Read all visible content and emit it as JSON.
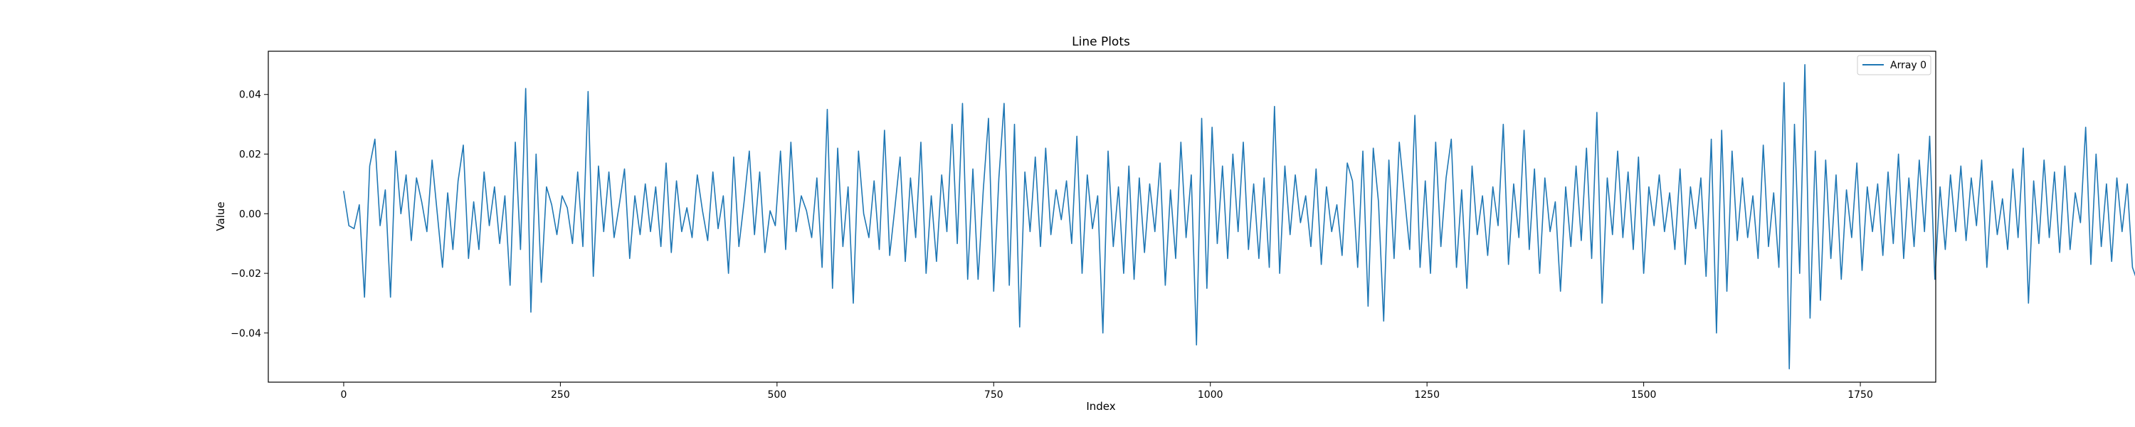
{
  "chart_data": {
    "type": "line",
    "title": "Line Plots",
    "xlabel": "Index",
    "ylabel": "Value",
    "xlim": [
      -87,
      1837
    ],
    "ylim": [
      -0.0565,
      0.0545
    ],
    "x_ticks": [
      0,
      250,
      500,
      750,
      1000,
      1250,
      1500,
      1750
    ],
    "x_tick_labels": [
      "0",
      "250",
      "500",
      "750",
      "1000",
      "1250",
      "1500",
      "1750"
    ],
    "y_ticks": [
      -0.04,
      -0.02,
      0.0,
      0.02,
      0.04
    ],
    "y_tick_labels": [
      "−0.04",
      "−0.02",
      "0.00",
      "0.02",
      "0.04"
    ],
    "grid": false,
    "legend_position": "top-right",
    "colors": {
      "series": "#1f77b4",
      "axes": "#000000",
      "background": "#ffffff"
    },
    "series": [
      {
        "name": "Array 0",
        "x_start": 0,
        "x_step": 6,
        "values": [
          0.0075,
          -0.004,
          -0.005,
          0.003,
          -0.028,
          0.016,
          0.025,
          -0.004,
          0.008,
          -0.028,
          0.021,
          0.0,
          0.013,
          -0.009,
          0.012,
          0.004,
          -0.006,
          0.018,
          0.0,
          -0.018,
          0.007,
          -0.012,
          0.011,
          0.023,
          -0.015,
          0.004,
          -0.012,
          0.014,
          -0.004,
          0.009,
          -0.01,
          0.006,
          -0.024,
          0.024,
          -0.012,
          0.042,
          -0.033,
          0.02,
          -0.023,
          0.009,
          0.003,
          -0.007,
          0.006,
          0.002,
          -0.01,
          0.014,
          -0.011,
          0.041,
          -0.021,
          0.016,
          -0.006,
          0.014,
          -0.008,
          0.003,
          0.015,
          -0.015,
          0.006,
          -0.007,
          0.01,
          -0.006,
          0.009,
          -0.011,
          0.017,
          -0.013,
          0.011,
          -0.006,
          0.002,
          -0.008,
          0.013,
          0.001,
          -0.009,
          0.014,
          -0.005,
          0.006,
          -0.02,
          0.019,
          -0.011,
          0.004,
          0.021,
          -0.007,
          0.014,
          -0.013,
          0.001,
          -0.004,
          0.021,
          -0.012,
          0.024,
          -0.006,
          0.006,
          0.001,
          -0.008,
          0.012,
          -0.018,
          0.035,
          -0.025,
          0.022,
          -0.011,
          0.009,
          -0.03,
          0.021,
          0.0,
          -0.008,
          0.011,
          -0.012,
          0.028,
          -0.014,
          0.002,
          0.019,
          -0.016,
          0.012,
          -0.008,
          0.024,
          -0.02,
          0.006,
          -0.016,
          0.013,
          -0.006,
          0.03,
          -0.01,
          0.037,
          -0.022,
          0.015,
          -0.022,
          0.008,
          0.032,
          -0.026,
          0.012,
          0.037,
          -0.024,
          0.03,
          -0.038,
          0.014,
          -0.006,
          0.019,
          -0.011,
          0.022,
          -0.007,
          0.008,
          -0.002,
          0.011,
          -0.01,
          0.026,
          -0.02,
          0.013,
          -0.005,
          0.006,
          -0.04,
          0.021,
          -0.011,
          0.009,
          -0.02,
          0.016,
          -0.022,
          0.012,
          -0.013,
          0.01,
          -0.006,
          0.017,
          -0.024,
          0.008,
          -0.015,
          0.024,
          -0.008,
          0.013,
          -0.044,
          0.032,
          -0.025,
          0.029,
          -0.01,
          0.016,
          -0.015,
          0.02,
          -0.006,
          0.024,
          -0.012,
          0.01,
          -0.015,
          0.012,
          -0.018,
          0.036,
          -0.02,
          0.016,
          -0.007,
          0.013,
          -0.003,
          0.006,
          -0.011,
          0.015,
          -0.017,
          0.009,
          -0.006,
          0.003,
          -0.014,
          0.017,
          0.011,
          -0.018,
          0.021,
          -0.031,
          0.022,
          0.004,
          -0.036,
          0.018,
          -0.015,
          0.024,
          0.006,
          -0.012,
          0.033,
          -0.018,
          0.011,
          -0.02,
          0.024,
          -0.011,
          0.012,
          0.025,
          -0.018,
          0.008,
          -0.025,
          0.016,
          -0.007,
          0.006,
          -0.014,
          0.009,
          -0.004,
          0.03,
          -0.017,
          0.01,
          -0.008,
          0.028,
          -0.012,
          0.015,
          -0.02,
          0.012,
          -0.006,
          0.004,
          -0.026,
          0.009,
          -0.011,
          0.016,
          -0.009,
          0.022,
          -0.015,
          0.034,
          -0.03,
          0.012,
          -0.007,
          0.021,
          -0.008,
          0.014,
          -0.012,
          0.019,
          -0.02,
          0.009,
          -0.004,
          0.013,
          -0.006,
          0.007,
          -0.012,
          0.015,
          -0.017,
          0.009,
          -0.005,
          0.012,
          -0.021,
          0.025,
          -0.04,
          0.028,
          -0.026,
          0.021,
          -0.009,
          0.012,
          -0.008,
          0.006,
          -0.015,
          0.023,
          -0.011,
          0.007,
          -0.018,
          0.044,
          -0.052,
          0.03,
          -0.02,
          0.05,
          -0.035,
          0.021,
          -0.029,
          0.018,
          -0.015,
          0.013,
          -0.022,
          0.008,
          -0.008,
          0.017,
          -0.019,
          0.009,
          -0.006,
          0.01,
          -0.014,
          0.014,
          -0.01,
          0.02,
          -0.015,
          0.012,
          -0.011,
          0.018,
          -0.006,
          0.026,
          -0.022,
          0.009,
          -0.012,
          0.013,
          -0.006,
          0.016,
          -0.009,
          0.012,
          -0.004,
          0.018,
          -0.018,
          0.011,
          -0.007,
          0.005,
          -0.012,
          0.015,
          -0.008,
          0.022,
          -0.03,
          0.011,
          -0.01,
          0.018,
          -0.008,
          0.014,
          -0.013,
          0.016,
          -0.012,
          0.007,
          -0.003,
          0.029,
          -0.017,
          0.02,
          -0.011,
          0.01,
          -0.016,
          0.012,
          -0.006,
          0.01,
          -0.018,
          -0.023,
          0.007
        ]
      }
    ]
  }
}
